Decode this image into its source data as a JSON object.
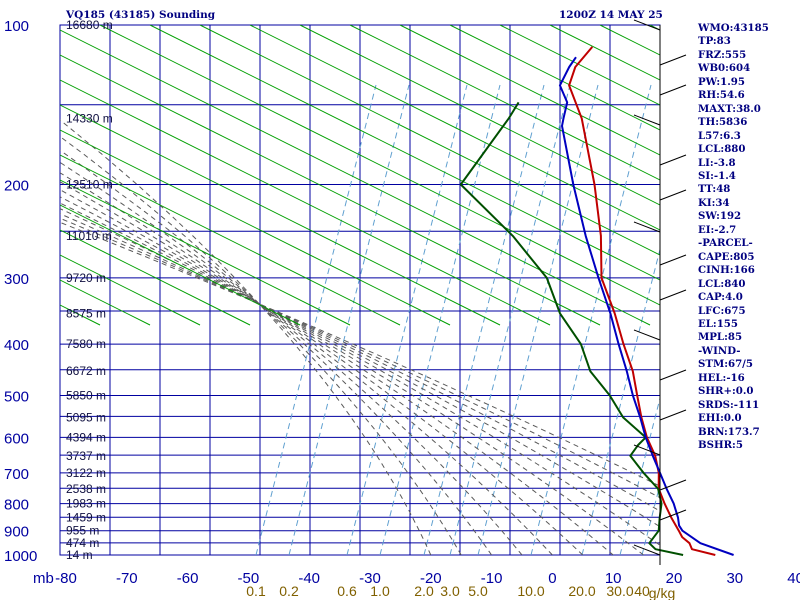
{
  "header": {
    "station": "VQ185 (43185) Sounding",
    "time": "1200Z 14 MAY 25"
  },
  "colors": {
    "grid": "#0000a0",
    "labels": "#000080",
    "temperature": "#c00000",
    "dewpoint": "#005000",
    "parcel": "#0000c0",
    "dry_adiabats": "#00a000",
    "moist_adiabats": "#5a5a5a",
    "mixing_ratio": "#60a0d0",
    "mixing_labels": "#806000"
  },
  "indices": [
    "WMO:43185",
    "TP:83",
    "FRZ:555",
    "WB0:604",
    "PW:1.95",
    "RH:54.6",
    "MAXT:38.0",
    "TH:5836",
    "L57:6.3",
    "LCL:880",
    "LI:-3.8",
    "SI:-1.4",
    "TT:48",
    "KI:34",
    "SW:192",
    "EI:-2.7",
    "-PARCEL-",
    "CAPE:805",
    "CINH:166",
    "LCL:840",
    "CAP:4.0",
    "LFC:675",
    "EL:155",
    "MPL:85",
    "-WIND-",
    "STM:67/5",
    "HEL:-16",
    "SHR+:0.0",
    "SRDS:-111",
    "EHI:0.0",
    "BRN:173.7",
    "BSHR:5"
  ],
  "chart_data": {
    "type": "skew-t log-p sounding",
    "axes": {
      "pressure_unit": "mb",
      "pressure_ticks": [
        100,
        200,
        300,
        400,
        500,
        600,
        700,
        800,
        900,
        1000
      ],
      "pressure_range": [
        100,
        1000
      ],
      "temperature_ticks": [
        -80,
        -70,
        -60,
        -50,
        -40,
        -30,
        -20,
        -10,
        0,
        10,
        20,
        30,
        40
      ],
      "temperature_range": [
        -80,
        40
      ],
      "mixing_ratio_unit": "g/kg",
      "mixing_ratio_ticks": [
        "0.1",
        "0.2",
        "0.6",
        "1.0",
        "2.0",
        "3.0",
        "5.0",
        "10.0",
        "20.0",
        "30.0",
        "40"
      ],
      "height_labels": [
        {
          "p": 1000,
          "label": "14 m"
        },
        {
          "p": 950,
          "label": "474 m"
        },
        {
          "p": 900,
          "label": "955 m"
        },
        {
          "p": 850,
          "label": "1459 m"
        },
        {
          "p": 800,
          "label": "1983 m"
        },
        {
          "p": 750,
          "label": "2538 m"
        },
        {
          "p": 700,
          "label": "3122 m"
        },
        {
          "p": 650,
          "label": "3737 m"
        },
        {
          "p": 600,
          "label": "4394 m"
        },
        {
          "p": 550,
          "label": "5095 m"
        },
        {
          "p": 500,
          "label": "5850 m"
        },
        {
          "p": 450,
          "label": "6672 m"
        },
        {
          "p": 400,
          "label": "7580 m"
        },
        {
          "p": 350,
          "label": "8575 m"
        },
        {
          "p": 300,
          "label": "9720 m"
        },
        {
          "p": 250,
          "label": "11010 m"
        },
        {
          "p": 200,
          "label": "12510 m"
        },
        {
          "p": 150,
          "label": "14330 m"
        },
        {
          "p": 100,
          "label": "16680 m"
        }
      ]
    },
    "series": [
      {
        "key": "temperature",
        "points": [
          [
            1000,
            26.8
          ],
          [
            975,
            22.0
          ],
          [
            950,
            20.6
          ],
          [
            925,
            18.4
          ],
          [
            900,
            16.8
          ],
          [
            850,
            13.4
          ],
          [
            800,
            10.0
          ],
          [
            750,
            6.6
          ],
          [
            700,
            4.0
          ],
          [
            650,
            0.6
          ],
          [
            600,
            -3.8
          ],
          [
            550,
            -8.0
          ],
          [
            500,
            -12.3
          ],
          [
            450,
            -17.0
          ],
          [
            400,
            -23.0
          ],
          [
            350,
            -29.5
          ],
          [
            300,
            -37.5
          ],
          [
            250,
            -44.5
          ],
          [
            200,
            -54.0
          ],
          [
            150,
            -67.0
          ],
          [
            130,
            -74.5
          ],
          [
            120,
            -76.5
          ],
          [
            110,
            -77.0
          ]
        ]
      },
      {
        "key": "dewpoint",
        "points": [
          [
            1000,
            21.5
          ],
          [
            975,
            16.0
          ],
          [
            950,
            14.0
          ],
          [
            900,
            13.5
          ],
          [
            850,
            11.5
          ],
          [
            800,
            9.5
          ],
          [
            750,
            6.5
          ],
          [
            700,
            1.5
          ],
          [
            650,
            -3.5
          ],
          [
            620,
            -4.0
          ],
          [
            600,
            -4.0
          ],
          [
            550,
            -11.0
          ],
          [
            500,
            -16.8
          ],
          [
            450,
            -24.0
          ],
          [
            400,
            -30.0
          ],
          [
            350,
            -38.5
          ],
          [
            300,
            -46.5
          ],
          [
            250,
            -59.0
          ],
          [
            200,
            -76.0
          ],
          [
            150,
            -79.0
          ],
          [
            140,
            -80.0
          ]
        ]
      },
      {
        "key": "parcel",
        "points": [
          [
            1000,
            29.8
          ],
          [
            950,
            22.4
          ],
          [
            900,
            17.4
          ],
          [
            880,
            16.0
          ],
          [
            850,
            14.5
          ],
          [
            800,
            11.5
          ],
          [
            750,
            7.9
          ],
          [
            700,
            4.2
          ],
          [
            650,
            0.2
          ],
          [
            600,
            -4.0
          ],
          [
            550,
            -8.2
          ],
          [
            500,
            -13.0
          ],
          [
            450,
            -18.0
          ],
          [
            400,
            -23.8
          ],
          [
            350,
            -30.2
          ],
          [
            300,
            -38.0
          ],
          [
            250,
            -47.0
          ],
          [
            200,
            -57.5
          ],
          [
            155,
            -69.0
          ],
          [
            150,
            -70.0
          ],
          [
            140,
            -72.0
          ],
          [
            130,
            -76.0
          ],
          [
            120,
            -77.5
          ],
          [
            115,
            -78.0
          ]
        ]
      }
    ]
  }
}
